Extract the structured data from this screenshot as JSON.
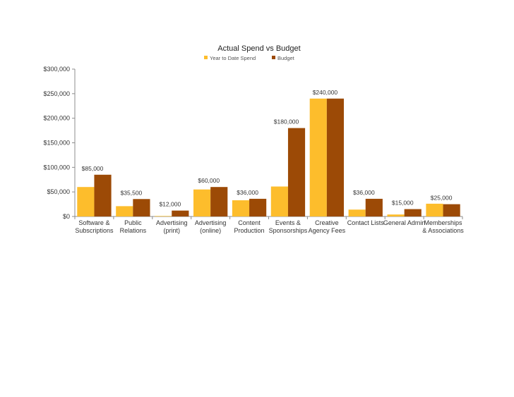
{
  "chart_data": {
    "type": "bar",
    "title": "Actual Spend vs Budget",
    "xlabel": "",
    "ylabel": "",
    "ylim": [
      0,
      300000
    ],
    "yticks": [
      0,
      50000,
      100000,
      150000,
      200000,
      250000,
      300000
    ],
    "ytick_labels": [
      "$0",
      "$50,000",
      "$100,000",
      "$150,000",
      "$200,000",
      "$250,000",
      "$300,000"
    ],
    "grid": false,
    "legend_position": "top-center",
    "categories": [
      [
        "Software &",
        "Subscriptions"
      ],
      [
        "Public",
        "Relations"
      ],
      [
        "Advertising",
        "(print)"
      ],
      [
        "Advertising",
        "(online)"
      ],
      [
        "Content",
        "Production"
      ],
      [
        "Events &",
        "Sponsorships"
      ],
      [
        "Creative",
        "Agency Fees"
      ],
      [
        "Contact Lists"
      ],
      [
        "General Admin"
      ],
      [
        "Memberships",
        "& Associations"
      ]
    ],
    "series": [
      {
        "name": "Year to Date Spend",
        "color": "#FDBD2C",
        "values": [
          60000,
          21000,
          1000,
          55000,
          33000,
          61000,
          240000,
          14000,
          4000,
          26000
        ]
      },
      {
        "name": "Budget",
        "color": "#9C4A06",
        "values": [
          85000,
          35500,
          12000,
          60000,
          36000,
          180000,
          240000,
          36000,
          15000,
          25000
        ],
        "data_labels": [
          "$85,000",
          "$35,500",
          "$12,000",
          "$60,000",
          "$36,000",
          "$180,000",
          "$240,000",
          "$36,000",
          "$15,000",
          "$25,000"
        ]
      }
    ]
  }
}
